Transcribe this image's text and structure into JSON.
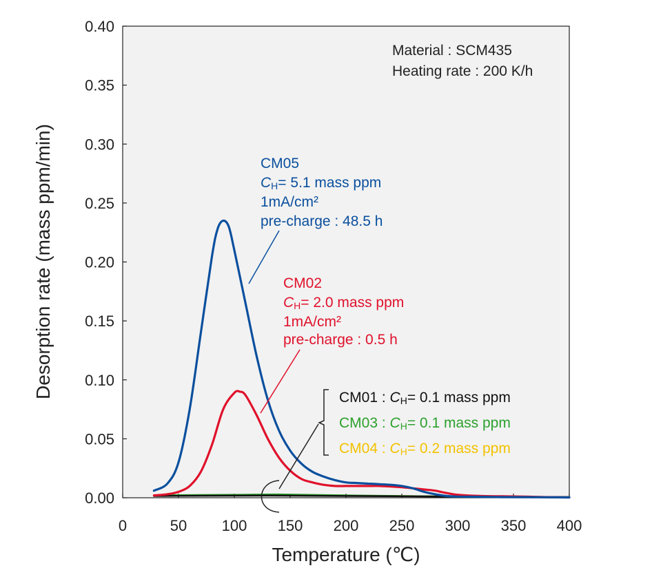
{
  "chart_data": {
    "type": "line",
    "xlabel": "Temperature (℃)",
    "ylabel": "Desorption rate (mass ppm/min)",
    "xlim": [
      0,
      400
    ],
    "ylim": [
      0,
      0.4
    ],
    "xticks": [
      "0",
      "50",
      "100",
      "150",
      "200",
      "250",
      "300",
      "350",
      "400"
    ],
    "yticks": [
      "0.00",
      "0.05",
      "0.10",
      "0.15",
      "0.20",
      "0.25",
      "0.30",
      "0.35",
      "0.40"
    ],
    "grid": false,
    "info": {
      "material": "Material : SCM435",
      "heating_rate": "Heating rate : 200 K/h"
    },
    "series": [
      {
        "name": "CM05",
        "color": "#0a4f9e",
        "x": [
          28,
          40,
          50,
          60,
          70,
          80,
          85,
          90,
          95,
          100,
          110,
          120,
          130,
          140,
          150,
          160,
          170,
          180,
          190,
          200,
          210,
          220,
          230,
          240,
          250,
          260,
          270,
          280,
          290,
          300,
          320,
          340,
          360,
          380,
          400
        ],
        "y": [
          0.006,
          0.012,
          0.03,
          0.075,
          0.14,
          0.205,
          0.228,
          0.235,
          0.23,
          0.21,
          0.165,
          0.12,
          0.083,
          0.057,
          0.04,
          0.029,
          0.022,
          0.018,
          0.015,
          0.013,
          0.0125,
          0.012,
          0.0115,
          0.011,
          0.01,
          0.008,
          0.005,
          0.003,
          0.0015,
          0.001,
          0.0008,
          0.0006,
          0.0005,
          0.0004,
          0.0003
        ]
      },
      {
        "name": "CM02",
        "color": "#e0112b",
        "x": [
          28,
          40,
          50,
          60,
          70,
          80,
          90,
          100,
          105,
          110,
          120,
          130,
          140,
          150,
          160,
          170,
          180,
          190,
          200,
          210,
          220,
          230,
          240,
          250,
          260,
          270,
          280,
          290,
          300,
          320,
          340,
          360,
          380,
          400
        ],
        "y": [
          0.002,
          0.003,
          0.005,
          0.01,
          0.022,
          0.045,
          0.075,
          0.089,
          0.09,
          0.087,
          0.07,
          0.05,
          0.034,
          0.023,
          0.016,
          0.013,
          0.011,
          0.01,
          0.01,
          0.01,
          0.01,
          0.01,
          0.0095,
          0.009,
          0.008,
          0.007,
          0.006,
          0.004,
          0.0025,
          0.0015,
          0.0012,
          0.001,
          0.0005,
          0.0003
        ]
      },
      {
        "name": "CM01",
        "color": "#111111",
        "x": [
          28,
          100,
          150,
          200,
          300,
          400
        ],
        "y": [
          0.0015,
          0.0018,
          0.0018,
          0.0015,
          0.001,
          0.0005
        ]
      },
      {
        "name": "CM03",
        "color": "#2ca02c",
        "x": [
          28,
          100,
          140,
          200,
          300,
          400
        ],
        "y": [
          0.002,
          0.0025,
          0.0028,
          0.002,
          0.001,
          0.0005
        ]
      },
      {
        "name": "CM04",
        "color": "#f2c200",
        "x": [
          28,
          100,
          150,
          200,
          300,
          400
        ],
        "y": [
          0.0018,
          0.002,
          0.0022,
          0.0018,
          0.001,
          0.0005
        ]
      }
    ],
    "annotations": {
      "cm05": {
        "name": "CM05",
        "ch_label": "C",
        "ch_sub": "H",
        "ch_value": "= 5.1 mass ppm",
        "current": "1mA/cm²",
        "precharge": "pre-charge : 48.5 h",
        "color": "#0a4f9e"
      },
      "cm02": {
        "name": "CM02",
        "ch_label": "C",
        "ch_sub": "H",
        "ch_value": "= 2.0 mass ppm",
        "current": "1mA/cm²",
        "precharge": "pre-charge : 0.5 h",
        "color": "#e0112b"
      },
      "low_group": [
        {
          "prefix": "CM01 : ",
          "ch_label": "C",
          "ch_sub": "H",
          "ch_value": "= 0.1 mass ppm",
          "color": "#111111"
        },
        {
          "prefix": "CM03 : ",
          "ch_label": "C",
          "ch_sub": "H",
          "ch_value": "= 0.1 mass ppm",
          "color": "#2ca02c"
        },
        {
          "prefix": "CM04 : ",
          "ch_label": "C",
          "ch_sub": "H",
          "ch_value": "= 0.2 mass ppm",
          "color": "#f2c200"
        }
      ]
    }
  }
}
